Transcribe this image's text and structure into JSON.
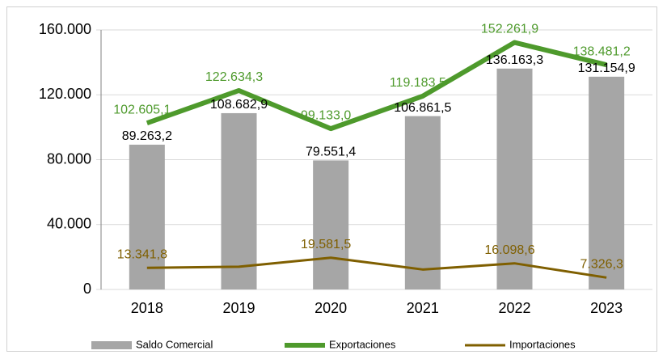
{
  "chart_data": {
    "type": "bar_line",
    "categories": [
      "2018",
      "2019",
      "2020",
      "2021",
      "2022",
      "2023"
    ],
    "series": [
      {
        "name": "Saldo Comercial",
        "type": "bar",
        "color": "#a6a6a6",
        "values": [
          89263.2,
          108682.9,
          79551.4,
          106861.5,
          136163.3,
          131154.9
        ],
        "value_labels": [
          "89.263,2",
          "108.682,9",
          "79.551,4",
          "106.861,5",
          "136.163,3",
          "131.154,9"
        ]
      },
      {
        "name": "Exportaciones",
        "type": "line",
        "color": "#4e9a2c",
        "values": [
          102605.1,
          122634.3,
          99133.0,
          119183.5,
          152261.9,
          138481.2
        ],
        "value_labels": [
          "102.605,1",
          "122.634,3",
          "99.133,0",
          "119.183,5",
          "152.261,9",
          "138.481,2"
        ]
      },
      {
        "name": "Importaciones",
        "type": "line",
        "color": "#7f5f00",
        "values": [
          13341.8,
          14000,
          19581.5,
          12300,
          16098.6,
          7326.3
        ],
        "value_labels": [
          "13.341,8",
          null,
          "19.581,5",
          null,
          "16.098,6",
          "7.326,3"
        ]
      }
    ],
    "ylim": [
      0,
      160000
    ],
    "yticks": [
      0,
      {
        "value": 40000,
        "label": "40.000"
      },
      {
        "value": 80000,
        "label": "80.000"
      },
      {
        "value": 120000,
        "label": "120.000"
      },
      {
        "value": 160000,
        "label": "160.000"
      }
    ],
    "grid": true,
    "legend": "bottom"
  }
}
